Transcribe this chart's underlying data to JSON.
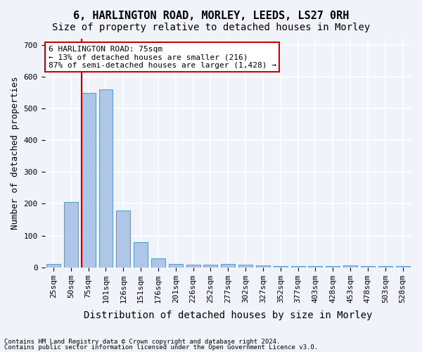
{
  "title": "6, HARLINGTON ROAD, MORLEY, LEEDS, LS27 0RH",
  "subtitle": "Size of property relative to detached houses in Morley",
  "xlabel": "Distribution of detached houses by size in Morley",
  "ylabel": "Number of detached properties",
  "categories": [
    "25sqm",
    "50sqm",
    "75sqm",
    "101sqm",
    "126sqm",
    "151sqm",
    "176sqm",
    "201sqm",
    "226sqm",
    "252sqm",
    "277sqm",
    "302sqm",
    "327sqm",
    "352sqm",
    "377sqm",
    "403sqm",
    "428sqm",
    "453sqm",
    "478sqm",
    "503sqm",
    "528sqm"
  ],
  "values": [
    10,
    205,
    550,
    560,
    178,
    78,
    28,
    10,
    8,
    8,
    10,
    8,
    5,
    3,
    3,
    3,
    3,
    5,
    3,
    3,
    3
  ],
  "bar_color": "#aec6e8",
  "bar_edge_color": "#5a9fd4",
  "highlight_index": 2,
  "red_line_x": 2,
  "annotation_title": "6 HARLINGTON ROAD: 75sqm",
  "annotation_line1": "← 13% of detached houses are smaller (216)",
  "annotation_line2": "87% of semi-detached houses are larger (1,428) →",
  "annotation_box_color": "#ffffff",
  "annotation_box_edge": "#cc0000",
  "ylim": [
    0,
    720
  ],
  "yticks": [
    0,
    100,
    200,
    300,
    400,
    500,
    600,
    700
  ],
  "footnote1": "Contains HM Land Registry data © Crown copyright and database right 2024.",
  "footnote2": "Contains public sector information licensed under the Open Government Licence v3.0.",
  "bg_color": "#f0f4fa",
  "grid_color": "#ffffff",
  "title_fontsize": 11,
  "subtitle_fontsize": 10,
  "axis_label_fontsize": 9,
  "tick_fontsize": 8
}
